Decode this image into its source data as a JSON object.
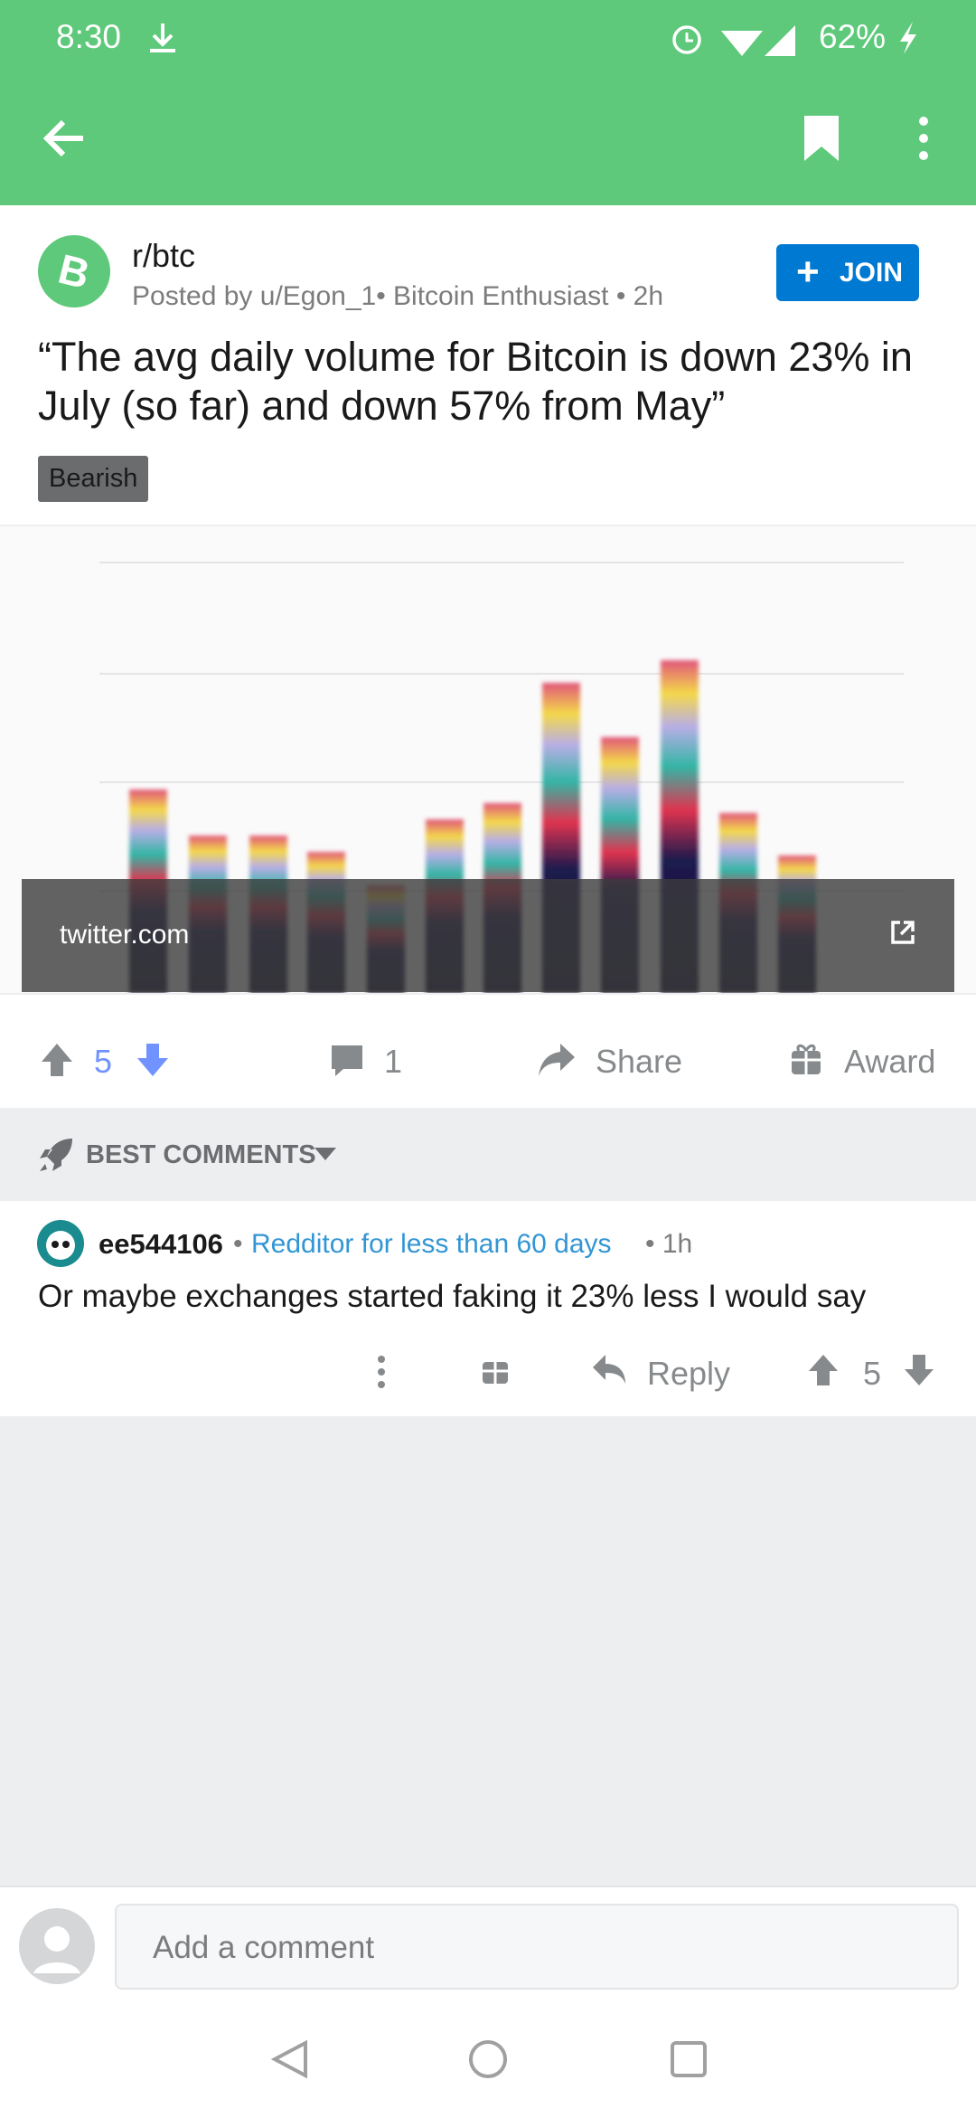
{
  "status_bar": {
    "time": "8:30",
    "battery": "62%"
  },
  "post": {
    "subreddit": "r/btc",
    "meta": "Posted by u/Egon_1• Bitcoin Enthusiast • 2h",
    "join": "JOIN",
    "title": "“The avg daily volume for Bitcoin is down 23% in July (so far) and down 57% from May”",
    "flair": "Bearish",
    "link_domain": "twitter.com",
    "votes": 5,
    "comments": 1,
    "share": "Share",
    "award": "Award"
  },
  "comments_header": "BEST COMMENTS",
  "comments": [
    {
      "author": "ee544106",
      "separator": "•",
      "badge": "Redditor for less than 60 days",
      "age": "• 1h",
      "body": "Or maybe exchanges started faking it 23% less I would say",
      "reply": "Reply",
      "votes": 5
    }
  ],
  "composer": {
    "placeholder": "Add a comment"
  }
}
